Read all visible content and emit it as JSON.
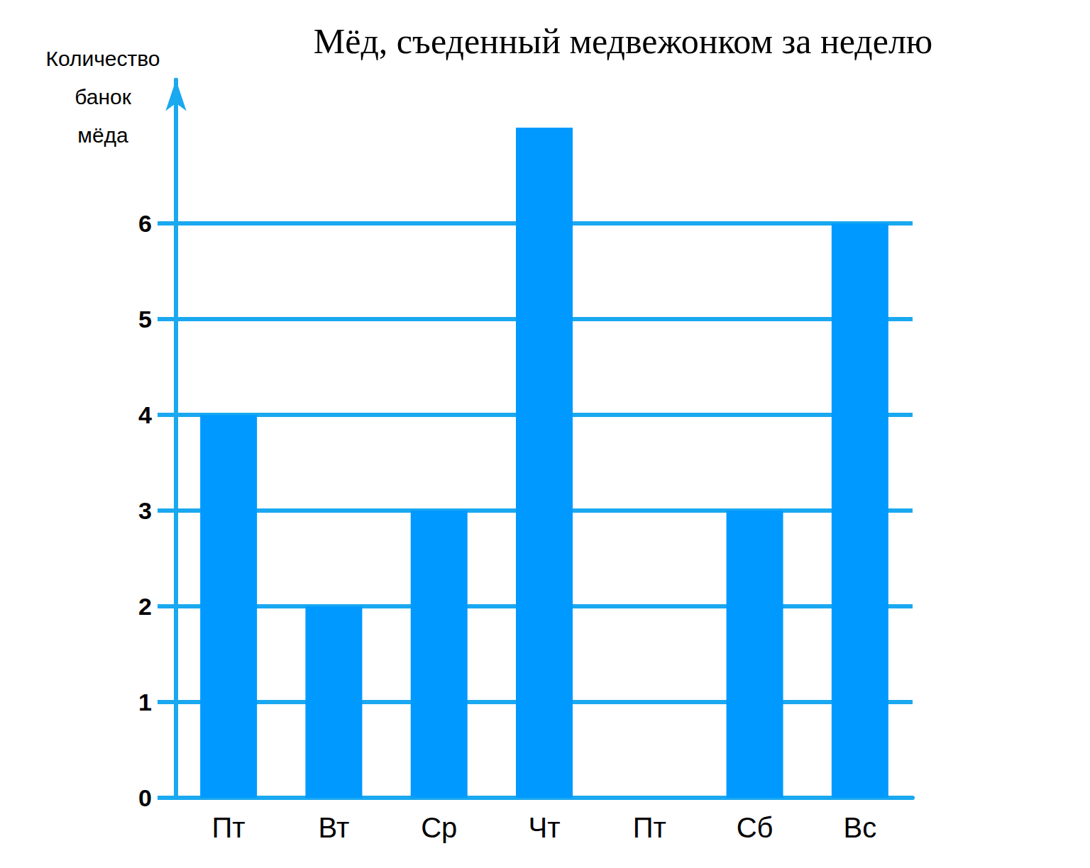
{
  "chart_data": {
    "type": "bar",
    "title": "Мёд, съеденный медвежонком за неделю",
    "y_label": "Количество банок мёда",
    "categories": [
      "Пт",
      "Вт",
      "Ср",
      "Чт",
      "Пт",
      "Сб",
      "Вс"
    ],
    "values": [
      4,
      2,
      3,
      7,
      0,
      3,
      6
    ],
    "color": "#0099ff",
    "ylim": [
      0,
      7.5
    ],
    "yticks": [
      0,
      1,
      2,
      3,
      4,
      5,
      6
    ],
    "grid": true
  }
}
